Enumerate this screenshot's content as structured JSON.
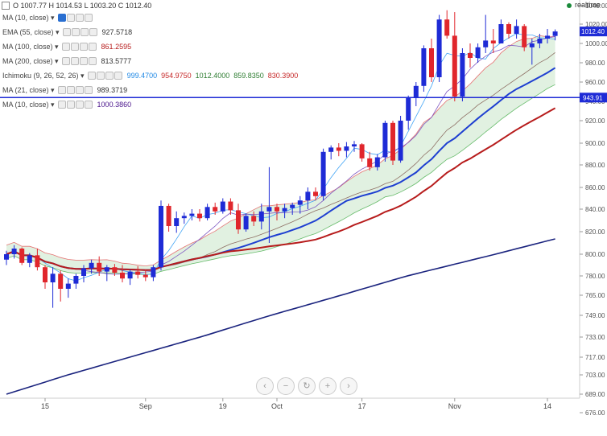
{
  "header": {
    "ohlc_text": "O 1007.77  H 1014.53  L 1003.20  C 1012.40",
    "realtime_label": "realtime"
  },
  "legend": [
    {
      "name": "MA (10, close)",
      "values": [],
      "eye": true
    },
    {
      "name": "EMA (55, close)",
      "values": [
        {
          "v": "927.5718",
          "color": "#333"
        }
      ]
    },
    {
      "name": "MA (100, close)",
      "values": [
        {
          "v": "861.2595",
          "color": "#b71c1c"
        }
      ]
    },
    {
      "name": "MA (200, close)",
      "values": [
        {
          "v": "813.5777",
          "color": "#333"
        }
      ]
    },
    {
      "name": "Ichimoku (9, 26, 52, 26)",
      "values": [
        {
          "v": "999.4700",
          "color": "#1e88e5"
        },
        {
          "v": "954.9750",
          "color": "#c62828"
        },
        {
          "v": "1012.4000",
          "color": "#2e7d32"
        },
        {
          "v": "859.8350",
          "color": "#2e7d32"
        },
        {
          "v": "830.3900",
          "color": "#c62828"
        }
      ]
    },
    {
      "name": "MA (21, close)",
      "values": [
        {
          "v": "989.3719",
          "color": "#333"
        }
      ]
    },
    {
      "name": "MA (10, close)",
      "values": [
        {
          "v": "1000.3860",
          "color": "#4a148c"
        }
      ]
    }
  ],
  "nav": {
    "zoom_out": "−",
    "reset": "↻",
    "zoom_in": "+",
    "left": "‹",
    "right": "›"
  },
  "chart_data": {
    "type": "candlestick",
    "y_ticks": [
      1040,
      1020,
      1000,
      980,
      960,
      940,
      920,
      900,
      880,
      860,
      840,
      820,
      800,
      780,
      765,
      749,
      733,
      717,
      703,
      689,
      676
    ],
    "ylim": [
      676,
      1040
    ],
    "price_line": {
      "value": 943.91,
      "label": "943.91"
    },
    "current_price": {
      "value": 1012.4,
      "label": "1012.40"
    },
    "x_labels": [
      {
        "label": "15",
        "i": 5
      },
      {
        "label": "Sep",
        "i": 18
      },
      {
        "label": "19",
        "i": 28
      },
      {
        "label": "Oct",
        "i": 35
      },
      {
        "label": "17",
        "i": 46
      },
      {
        "label": "Nov",
        "i": 58
      },
      {
        "label": "14",
        "i": 70
      }
    ],
    "candles": [
      [
        795,
        803,
        790,
        800
      ],
      [
        800,
        808,
        796,
        805
      ],
      [
        805,
        806,
        790,
        792
      ],
      [
        792,
        801,
        788,
        799
      ],
      [
        799,
        805,
        785,
        788
      ],
      [
        788,
        790,
        770,
        775
      ],
      [
        775,
        788,
        755,
        782
      ],
      [
        782,
        785,
        760,
        770
      ],
      [
        770,
        778,
        763,
        774
      ],
      [
        774,
        782,
        770,
        780
      ],
      [
        780,
        790,
        775,
        787
      ],
      [
        787,
        795,
        782,
        792
      ],
      [
        792,
        798,
        780,
        784
      ],
      [
        784,
        790,
        776,
        788
      ],
      [
        788,
        791,
        780,
        783
      ],
      [
        783,
        790,
        775,
        778
      ],
      [
        778,
        786,
        773,
        784
      ],
      [
        784,
        789,
        778,
        781
      ],
      [
        781,
        786,
        776,
        779
      ],
      [
        779,
        790,
        776,
        788
      ],
      [
        788,
        848,
        785,
        843
      ],
      [
        843,
        845,
        820,
        825
      ],
      [
        825,
        838,
        819,
        832
      ],
      [
        832,
        837,
        827,
        834
      ],
      [
        834,
        840,
        830,
        836
      ],
      [
        836,
        840,
        829,
        832
      ],
      [
        832,
        845,
        830,
        842
      ],
      [
        842,
        846,
        835,
        838
      ],
      [
        838,
        850,
        836,
        847
      ],
      [
        847,
        850,
        835,
        839
      ],
      [
        839,
        845,
        818,
        822
      ],
      [
        822,
        836,
        820,
        834
      ],
      [
        834,
        838,
        825,
        829
      ],
      [
        829,
        845,
        822,
        838
      ],
      [
        838,
        878,
        810,
        842
      ],
      [
        842,
        845,
        830,
        838
      ],
      [
        838,
        845,
        832,
        841
      ],
      [
        841,
        846,
        835,
        844
      ],
      [
        844,
        852,
        836,
        848
      ],
      [
        848,
        860,
        840,
        856
      ],
      [
        856,
        860,
        848,
        852
      ],
      [
        852,
        895,
        848,
        892
      ],
      [
        892,
        898,
        885,
        896
      ],
      [
        896,
        900,
        888,
        893
      ],
      [
        893,
        901,
        887,
        897
      ],
      [
        897,
        902,
        892,
        899
      ],
      [
        899,
        900,
        883,
        886
      ],
      [
        886,
        892,
        875,
        878
      ],
      [
        878,
        890,
        875,
        887
      ],
      [
        887,
        920,
        883,
        918
      ],
      [
        918,
        920,
        880,
        884
      ],
      [
        884,
        925,
        882,
        920
      ],
      [
        920,
        946,
        912,
        944
      ],
      [
        944,
        960,
        935,
        956
      ],
      [
        956,
        998,
        950,
        995
      ],
      [
        995,
        1005,
        960,
        965
      ],
      [
        965,
        1030,
        960,
        1025
      ],
      [
        1025,
        1035,
        1005,
        1008
      ],
      [
        1008,
        1033,
        940,
        945
      ],
      [
        945,
        995,
        940,
        990
      ],
      [
        990,
        1000,
        975,
        985
      ],
      [
        985,
        1000,
        980,
        996
      ],
      [
        996,
        1030,
        990,
        1003
      ],
      [
        1003,
        1015,
        990,
        1000
      ],
      [
        1000,
        1025,
        1003,
        1020
      ],
      [
        1020,
        1022,
        1005,
        1010
      ],
      [
        1010,
        1025,
        1005,
        1018
      ],
      [
        1018,
        1020,
        992,
        996
      ],
      [
        996,
        1005,
        978,
        1000
      ],
      [
        1000,
        1010,
        995,
        1005
      ],
      [
        1005,
        1015,
        1000,
        1008
      ],
      [
        1007.77,
        1014.53,
        1003.2,
        1012.4
      ]
    ]
  }
}
